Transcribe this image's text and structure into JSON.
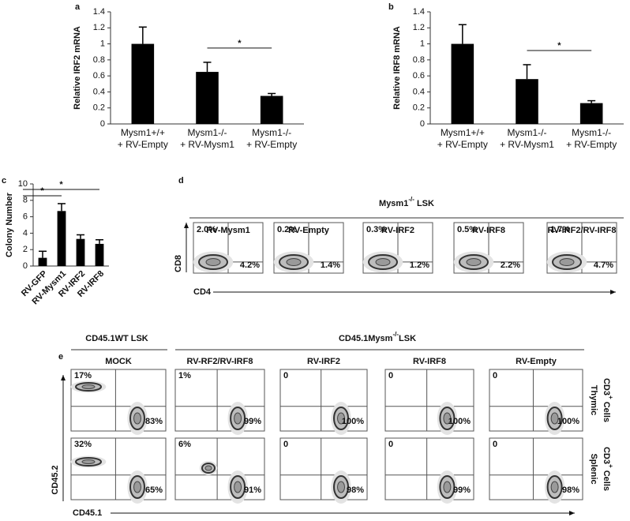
{
  "chart_data": [
    {
      "type": "bar",
      "panel": "a",
      "y_label": "Relative IRF2 mRNA",
      "categories": [
        "Mysm1+/+\n+ RV-Empty",
        "Mysm1-/-\n+ RV-Mysm1",
        "Mysm1-/-\n+ RV-Empty"
      ],
      "values": [
        1.0,
        0.65,
        0.35
      ],
      "errors": [
        0.21,
        0.12,
        0.03
      ],
      "color": "#000000",
      "ylim": [
        0,
        1.4
      ],
      "yticks": [
        0,
        0.2,
        0.4,
        0.6,
        0.8,
        1,
        1.2,
        1.4
      ],
      "significance": [
        {
          "label": "*",
          "between": [
            1,
            2
          ]
        }
      ]
    },
    {
      "type": "bar",
      "panel": "b",
      "y_label": "Relative IRF8 mRNA",
      "categories": [
        "Mysm1+/+\n+ RV-Empty",
        "Mysm1-/-\n+ RV-Mysm1",
        "Mysm1-/-\n+ RV-Empty"
      ],
      "values": [
        1.0,
        0.56,
        0.26
      ],
      "errors": [
        0.24,
        0.18,
        0.03
      ],
      "color": "#000000",
      "ylim": [
        0,
        1.4
      ],
      "yticks": [
        0,
        0.2,
        0.4,
        0.6,
        0.8,
        1,
        1.2,
        1.4
      ],
      "significance": [
        {
          "label": "*",
          "between": [
            1,
            2
          ]
        }
      ]
    },
    {
      "type": "bar",
      "panel": "c",
      "y_label": "Colony Number",
      "categories": [
        "RV-GFP",
        "RV-Mysm1",
        "RV-IRF2",
        "RV-IRF8"
      ],
      "values": [
        1.0,
        6.7,
        3.3,
        2.7
      ],
      "errors": [
        0.8,
        0.9,
        0.5,
        0.5
      ],
      "color": "#000000",
      "ylim": [
        0,
        10
      ],
      "yticks": [
        0,
        2,
        4,
        6,
        8,
        10
      ],
      "significance": [
        {
          "label": "*",
          "between": [
            0,
            1
          ]
        },
        {
          "label": "*",
          "between": [
            0,
            3
          ]
        }
      ]
    }
  ],
  "panel_d": {
    "label": "d",
    "title": {
      "text": "Mysm1",
      "sup": "-/-",
      "after": " LSK"
    },
    "x_label": "CD4",
    "y_label": "CD8",
    "plots": [
      {
        "name": "RV-Mysm1",
        "upper_left": "2.0%",
        "lower_right": "4.2%"
      },
      {
        "name": "RV-Empty",
        "upper_left": "0.2%",
        "lower_right": "1.4%"
      },
      {
        "name": "RV-IRF2",
        "upper_left": "0.3%",
        "lower_right": "1.2%"
      },
      {
        "name": "RV-IRF8",
        "upper_left": "0.5%",
        "lower_right": "2.2%"
      },
      {
        "name": "RV-IRF2/RV-IRF8",
        "upper_left": "1.7%",
        "lower_right": "4.7%"
      }
    ]
  },
  "panel_e": {
    "label": "e",
    "groups": [
      {
        "text": "CD45.1WT LSK"
      },
      {
        "text": "CD45.1Mysm",
        "sup": "-/-",
        "after": "LSK"
      }
    ],
    "columns": [
      "MOCK",
      "RV-RF2/RV-IRF8",
      "RV-IRF2",
      "RV-IRF8",
      "RV-Empty"
    ],
    "rows": [
      {
        "line1": "Thymic",
        "line2": {
          "text": "CD3",
          "sup": "+",
          "after": " Cells"
        },
        "percents": [
          [
            "17%",
            "83%"
          ],
          [
            "1%",
            "99%"
          ],
          [
            "0",
            "100%"
          ],
          [
            "0",
            "100%"
          ],
          [
            "0",
            "100%"
          ]
        ]
      },
      {
        "line1": "Splenic",
        "line2": {
          "text": "CD3",
          "sup": "+",
          "after": " Cells"
        },
        "percents": [
          [
            "32%",
            "65%"
          ],
          [
            "6%",
            "91%"
          ],
          [
            "0",
            "98%"
          ],
          [
            "0",
            "99%"
          ],
          [
            "0",
            "98%"
          ]
        ]
      }
    ],
    "x_label": "CD45.1",
    "y_label": "CD45.2"
  }
}
